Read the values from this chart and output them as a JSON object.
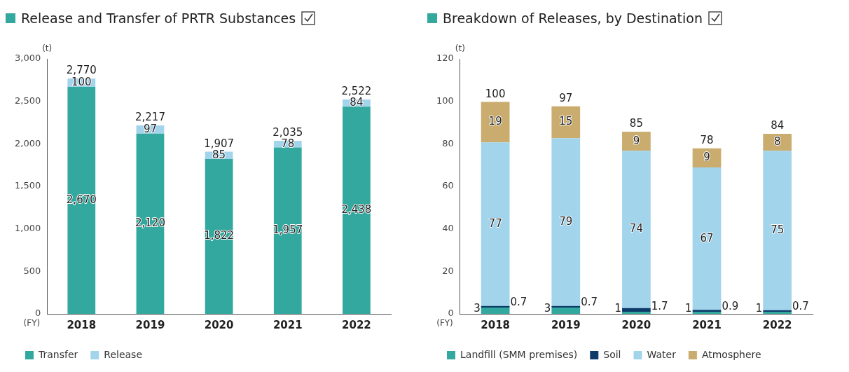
{
  "chart_data": [
    {
      "type": "bar",
      "title": "Release and Transfer of PRTR Substances",
      "ylabel": "(t)",
      "xlabel": "(FY)",
      "categories": [
        "2018",
        "2019",
        "2020",
        "2021",
        "2022"
      ],
      "stacked": true,
      "legend": "bottom left",
      "ylim": [
        0,
        3000
      ],
      "yticks": [
        0,
        500,
        {
          "value": 1000,
          "label": "1,000"
        },
        {
          "value": 1500,
          "label": "1,500"
        },
        {
          "value": 2000,
          "label": "2,000"
        },
        {
          "value": 2500,
          "label": "2,500"
        },
        {
          "value": 3000,
          "label": "3,000"
        }
      ],
      "series": [
        {
          "name": "Transfer",
          "color": "#33a89e",
          "values": [
            2670,
            2120,
            1822,
            1957,
            2438
          ],
          "value_labels": [
            "2,670",
            "2,120",
            "1,822",
            "1,957",
            "2,438"
          ]
        },
        {
          "name": "Release",
          "color": "#a2d4ec",
          "values": [
            100,
            97,
            85,
            78,
            84
          ],
          "value_labels": [
            "100",
            "97",
            "85",
            "78",
            "84"
          ]
        }
      ],
      "totals": [
        "2,770",
        "2,217",
        "1,907",
        "2,035",
        "2,522"
      ]
    },
    {
      "type": "bar",
      "title": "Breakdown of Releases, by Destination",
      "ylabel": "(t)",
      "xlabel": "(FY)",
      "categories": [
        "2018",
        "2019",
        "2020",
        "2021",
        "2022"
      ],
      "stacked": true,
      "legend": "bottom left",
      "ylim": [
        0,
        120
      ],
      "yticks": [
        0,
        20,
        40,
        60,
        80,
        100,
        120
      ],
      "series": [
        {
          "name": "Landfill (SMM premises)",
          "color": "#33a89e",
          "values": [
            3,
            3,
            1,
            1,
            1
          ],
          "value_labels": [
            "3",
            "3",
            "1",
            "1",
            "1"
          ]
        },
        {
          "name": "Soil",
          "color": "#0d3c6b",
          "values": [
            0.7,
            0.7,
            1.7,
            0.9,
            0.7
          ],
          "value_labels": [
            "0.7",
            "0.7",
            "1.7",
            "0.9",
            "0.7"
          ]
        },
        {
          "name": "Water",
          "color": "#a2d4ec",
          "values": [
            77,
            79,
            74,
            67,
            75
          ],
          "value_labels": [
            "77",
            "79",
            "74",
            "67",
            "75"
          ]
        },
        {
          "name": "Atmosphere",
          "color": "#c9ac6e",
          "values": [
            19,
            15,
            9,
            9,
            8
          ],
          "value_labels": [
            "19",
            "15",
            "9",
            "9",
            "8"
          ]
        }
      ],
      "totals": [
        "100",
        "97",
        "85",
        "78",
        "84"
      ]
    }
  ]
}
